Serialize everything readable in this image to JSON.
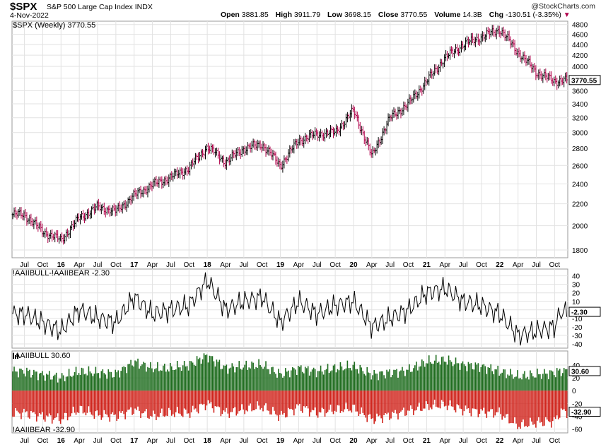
{
  "header": {
    "symbol": "$SPX",
    "company": "S&P 500 Large Cap Index",
    "exchange": "INDX",
    "date": "4-Nov-2022",
    "credit": "@StockCharts.com",
    "open_label": "Open",
    "open": "3881.85",
    "high_label": "High",
    "high": "3911.79",
    "low_label": "Low",
    "low": "3698.15",
    "close_label": "Close",
    "close": "3770.55",
    "volume_label": "Volume",
    "volume": "14.3B",
    "chg_label": "Chg",
    "chg": "-130.51 (-3.35%)"
  },
  "panels": {
    "price_label": "$SPX (Weekly) 3770.55",
    "spread_label": "!AAIIBULL-!AAIIBEAR -2.30",
    "bull_label": "!AAIIBULL 30.60",
    "bear_label": "!AAIIBEAR -32.90"
  },
  "colors": {
    "up_bar": "#000000",
    "down_bar": "#b0004a",
    "bull_fill": "#1f6d1f",
    "bear_fill": "#d0241c",
    "grid": "#e2e2e2"
  },
  "chart_data": [
    {
      "type": "ohlc",
      "series": [
        {
          "name": "$SPX (Weekly)",
          "last": 3770.55
        }
      ],
      "x": [
        "2015-07",
        "2015-10",
        "2016-01",
        "2016-04",
        "2016-07",
        "2016-10",
        "2017-01",
        "2017-04",
        "2017-07",
        "2017-10",
        "2018-01",
        "2018-04",
        "2018-07",
        "2018-10",
        "2019-01",
        "2019-04",
        "2019-07",
        "2019-10",
        "2020-01",
        "2020-04",
        "2020-07",
        "2020-10",
        "2021-01",
        "2021-04",
        "2021-07",
        "2021-10",
        "2022-01",
        "2022-04",
        "2022-07",
        "2022-10",
        "2022-11"
      ],
      "values": [
        2100,
        1950,
        1880,
        2070,
        2170,
        2130,
        2280,
        2390,
        2470,
        2570,
        2820,
        2640,
        2800,
        2850,
        2600,
        2900,
        2980,
        3000,
        3300,
        2700,
        3200,
        3400,
        3750,
        4150,
        4400,
        4550,
        4700,
        4250,
        3900,
        3750,
        3770.55
      ],
      "x_tick_labels": [
        "Jul",
        "Oct",
        "16",
        "Apr",
        "Jul",
        "Oct",
        "17",
        "Apr",
        "Jul",
        "Oct",
        "18",
        "Apr",
        "Jul",
        "Oct",
        "19",
        "Apr",
        "Jul",
        "Oct",
        "20",
        "Apr",
        "Jul",
        "Oct",
        "21",
        "Apr",
        "Jul",
        "Oct",
        "22",
        "Apr",
        "Jul",
        "Oct"
      ],
      "y_ticks": [
        1800,
        2000,
        2200,
        2400,
        2600,
        2800,
        3000,
        3200,
        3400,
        3600,
        3800,
        4000,
        4200,
        4400,
        4600,
        4800
      ],
      "ylim": [
        1740,
        4870
      ],
      "last_value_label": "3770.55",
      "scale": "log",
      "grid": true
    },
    {
      "type": "line",
      "series": [
        {
          "name": "!AAIIBULL-!AAIIBEAR",
          "last": -2.3
        }
      ],
      "x": [
        "2015-07",
        "2015-10",
        "2016-01",
        "2016-04",
        "2016-07",
        "2016-10",
        "2017-01",
        "2017-04",
        "2017-07",
        "2017-10",
        "2018-01",
        "2018-04",
        "2018-07",
        "2018-10",
        "2019-01",
        "2019-04",
        "2019-07",
        "2019-10",
        "2020-01",
        "2020-04",
        "2020-07",
        "2020-10",
        "2021-01",
        "2021-04",
        "2021-07",
        "2021-10",
        "2022-01",
        "2022-04",
        "2022-07",
        "2022-10",
        "2022-11"
      ],
      "values": [
        -5,
        -15,
        -25,
        0,
        -10,
        -15,
        15,
        -5,
        0,
        5,
        35,
        0,
        10,
        15,
        -15,
        10,
        -5,
        5,
        10,
        -20,
        -10,
        0,
        20,
        25,
        10,
        5,
        -5,
        -30,
        -25,
        -20,
        -2.3
      ],
      "y_ticks": [
        -40,
        -30,
        -20,
        -10,
        0,
        10,
        20,
        30,
        40
      ],
      "y_tick_labels": [
        "-40",
        "-30",
        "-20",
        "-10",
        "",
        "10",
        "20",
        "30",
        "40"
      ],
      "ylim": [
        -45,
        48
      ],
      "last_value_label": "-2.30",
      "grid": true
    },
    {
      "type": "bar",
      "series": [
        {
          "name": "!AAIIBULL",
          "last": 30.6,
          "values": [
            30,
            25,
            20,
            30,
            28,
            26,
            45,
            35,
            35,
            40,
            55,
            35,
            38,
            40,
            25,
            35,
            30,
            35,
            38,
            25,
            28,
            32,
            45,
            48,
            40,
            38,
            30,
            22,
            25,
            28,
            30.6
          ]
        },
        {
          "name": "!AAIIBEAR",
          "last": -32.9,
          "values": [
            -35,
            -40,
            -45,
            -30,
            -38,
            -40,
            -30,
            -40,
            -35,
            -35,
            -20,
            -35,
            -30,
            -25,
            -40,
            -25,
            -35,
            -30,
            -28,
            -45,
            -38,
            -32,
            -25,
            -22,
            -30,
            -33,
            -35,
            -55,
            -50,
            -48,
            -32.9
          ]
        }
      ],
      "x": [
        "2015-07",
        "2015-10",
        "2016-01",
        "2016-04",
        "2016-07",
        "2016-10",
        "2017-01",
        "2017-04",
        "2017-07",
        "2017-10",
        "2018-01",
        "2018-04",
        "2018-07",
        "2018-10",
        "2019-01",
        "2019-04",
        "2019-07",
        "2019-10",
        "2020-01",
        "2020-04",
        "2020-07",
        "2020-10",
        "2021-01",
        "2021-04",
        "2021-07",
        "2021-10",
        "2022-01",
        "2022-04",
        "2022-07",
        "2022-10",
        "2022-11"
      ],
      "y_ticks": [
        -60,
        -40,
        -20,
        0,
        20,
        40
      ],
      "ylim": [
        -66,
        62
      ],
      "last_value_labels": [
        "30.60",
        "-32.90"
      ],
      "grid": true
    }
  ]
}
